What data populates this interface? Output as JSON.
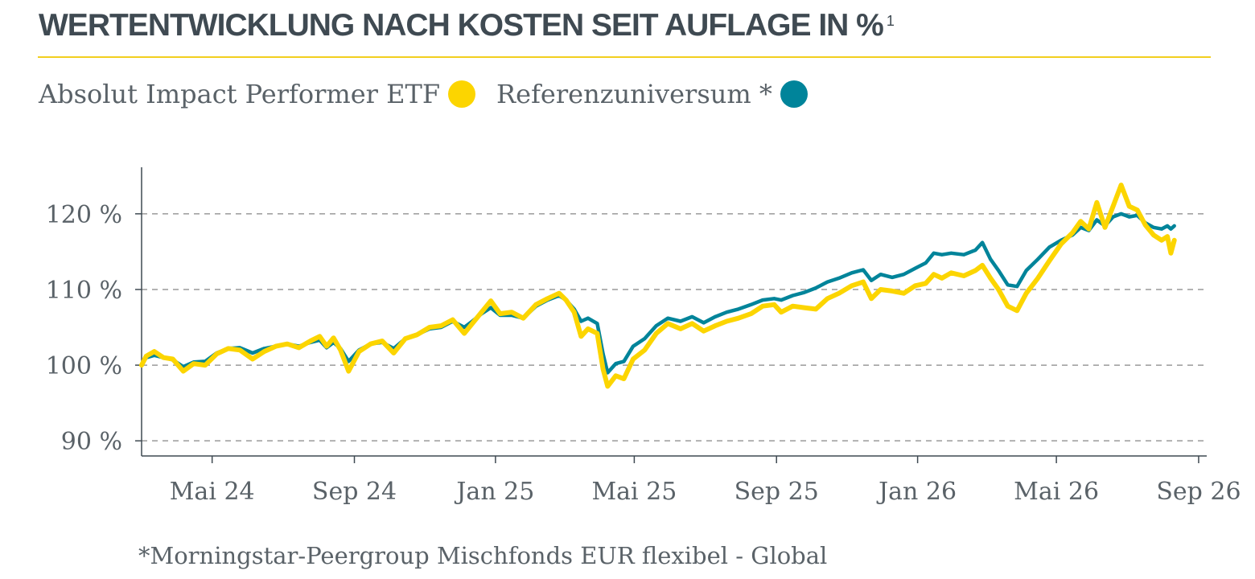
{
  "header": {
    "title": "WERTENTWICKLUNG NACH KOSTEN SEIT AUFLAGE IN %",
    "footnote_marker": "1"
  },
  "legend": {
    "items": [
      {
        "label": "Absolut Impact Performer ETF",
        "color": "#fcd500"
      },
      {
        "label": "Referenzuniversum *",
        "color": "#00849a"
      }
    ]
  },
  "footnote": "*Morningstar-Peergroup Mischfonds EUR flexibel - Global",
  "chart_data": {
    "type": "line",
    "ylim": [
      88,
      127
    ],
    "yticks": [
      90,
      100,
      110,
      120
    ],
    "ytick_labels": [
      "90 %",
      "100 %",
      "110 %",
      "120 %"
    ],
    "xlim": [
      "2024-03-01",
      "2026-09-08"
    ],
    "xticks": [
      "2024-05-01",
      "2024-09-01",
      "2025-01-01",
      "2025-05-01",
      "2025-09-01",
      "2026-01-01",
      "2026-05-01",
      "2026-09-01"
    ],
    "xtick_labels": [
      "Mai 24",
      "Sep 24",
      "Jan 25",
      "Mai 25",
      "Sep 25",
      "Jan 26",
      "Mai 26",
      "Sep 26"
    ],
    "grid": "horizontal-dashed",
    "series": [
      {
        "name": "Absolut Impact Performer ETF",
        "color": "#fcd500",
        "points": [
          [
            "2024-03-01",
            100.0
          ],
          [
            "2024-03-05",
            101.2
          ],
          [
            "2024-03-12",
            101.8
          ],
          [
            "2024-03-20",
            101.0
          ],
          [
            "2024-03-28",
            100.8
          ],
          [
            "2024-04-06",
            99.2
          ],
          [
            "2024-04-15",
            100.2
          ],
          [
            "2024-04-25",
            100.0
          ],
          [
            "2024-05-05",
            101.5
          ],
          [
            "2024-05-15",
            102.2
          ],
          [
            "2024-05-25",
            102.0
          ],
          [
            "2024-06-05",
            100.8
          ],
          [
            "2024-06-15",
            101.8
          ],
          [
            "2024-06-25",
            102.5
          ],
          [
            "2024-07-05",
            102.8
          ],
          [
            "2024-07-15",
            102.3
          ],
          [
            "2024-07-25",
            103.2
          ],
          [
            "2024-08-02",
            103.8
          ],
          [
            "2024-08-08",
            102.5
          ],
          [
            "2024-08-14",
            103.6
          ],
          [
            "2024-08-20",
            102.0
          ],
          [
            "2024-08-27",
            99.2
          ],
          [
            "2024-09-05",
            101.8
          ],
          [
            "2024-09-15",
            102.8
          ],
          [
            "2024-09-25",
            103.2
          ],
          [
            "2024-10-05",
            101.6
          ],
          [
            "2024-10-15",
            103.5
          ],
          [
            "2024-10-25",
            104.0
          ],
          [
            "2024-11-05",
            105.0
          ],
          [
            "2024-11-15",
            105.2
          ],
          [
            "2024-11-25",
            106.0
          ],
          [
            "2024-12-05",
            104.2
          ],
          [
            "2024-12-12",
            105.5
          ],
          [
            "2024-12-20",
            107.0
          ],
          [
            "2024-12-28",
            108.5
          ],
          [
            "2025-01-05",
            106.8
          ],
          [
            "2025-01-15",
            107.0
          ],
          [
            "2025-01-25",
            106.2
          ],
          [
            "2025-02-05",
            108.0
          ],
          [
            "2025-02-15",
            108.8
          ],
          [
            "2025-02-25",
            109.5
          ],
          [
            "2025-03-03",
            108.6
          ],
          [
            "2025-03-10",
            107.0
          ],
          [
            "2025-03-16",
            103.8
          ],
          [
            "2025-03-22",
            104.8
          ],
          [
            "2025-03-30",
            104.2
          ],
          [
            "2025-04-04",
            99.5
          ],
          [
            "2025-04-08",
            97.2
          ],
          [
            "2025-04-15",
            98.6
          ],
          [
            "2025-04-22",
            98.2
          ],
          [
            "2025-04-30",
            100.8
          ],
          [
            "2025-05-10",
            102.0
          ],
          [
            "2025-05-20",
            104.2
          ],
          [
            "2025-05-30",
            105.5
          ],
          [
            "2025-06-10",
            104.8
          ],
          [
            "2025-06-20",
            105.5
          ],
          [
            "2025-06-30",
            104.5
          ],
          [
            "2025-07-10",
            105.2
          ],
          [
            "2025-07-20",
            105.8
          ],
          [
            "2025-07-30",
            106.2
          ],
          [
            "2025-08-10",
            106.8
          ],
          [
            "2025-08-20",
            107.8
          ],
          [
            "2025-08-30",
            108.0
          ],
          [
            "2025-09-05",
            107.0
          ],
          [
            "2025-09-15",
            107.8
          ],
          [
            "2025-09-25",
            107.6
          ],
          [
            "2025-10-05",
            107.4
          ],
          [
            "2025-10-15",
            108.8
          ],
          [
            "2025-10-25",
            109.5
          ],
          [
            "2025-11-05",
            110.5
          ],
          [
            "2025-11-15",
            111.0
          ],
          [
            "2025-11-22",
            108.8
          ],
          [
            "2025-11-30",
            110.0
          ],
          [
            "2025-12-10",
            109.8
          ],
          [
            "2025-12-20",
            109.5
          ],
          [
            "2025-12-30",
            110.5
          ],
          [
            "2026-01-08",
            110.8
          ],
          [
            "2026-01-15",
            112.0
          ],
          [
            "2026-01-22",
            111.5
          ],
          [
            "2026-01-30",
            112.2
          ],
          [
            "2026-02-10",
            111.8
          ],
          [
            "2026-02-20",
            112.5
          ],
          [
            "2026-02-26",
            113.2
          ],
          [
            "2026-03-05",
            111.5
          ],
          [
            "2026-03-12",
            110.0
          ],
          [
            "2026-03-20",
            107.8
          ],
          [
            "2026-03-28",
            107.2
          ],
          [
            "2026-04-05",
            109.5
          ],
          [
            "2026-04-15",
            111.5
          ],
          [
            "2026-04-25",
            113.8
          ],
          [
            "2026-05-05",
            116.0
          ],
          [
            "2026-05-15",
            117.5
          ],
          [
            "2026-05-22",
            119.0
          ],
          [
            "2026-05-29",
            118.0
          ],
          [
            "2026-06-05",
            121.5
          ],
          [
            "2026-06-12",
            118.2
          ],
          [
            "2026-06-19",
            121.0
          ],
          [
            "2026-06-26",
            123.8
          ],
          [
            "2026-07-03",
            121.0
          ],
          [
            "2026-07-10",
            120.5
          ],
          [
            "2026-07-17",
            118.5
          ],
          [
            "2026-07-24",
            117.2
          ],
          [
            "2026-07-31",
            116.5
          ],
          [
            "2026-08-05",
            117.0
          ],
          [
            "2026-08-08",
            114.8
          ],
          [
            "2026-08-11",
            116.5
          ]
        ]
      },
      {
        "name": "Referenzuniversum *",
        "color": "#00849a",
        "points": [
          [
            "2024-03-01",
            100.0
          ],
          [
            "2024-03-05",
            101.0
          ],
          [
            "2024-03-12",
            101.3
          ],
          [
            "2024-03-20",
            101.0
          ],
          [
            "2024-03-28",
            100.7
          ],
          [
            "2024-04-06",
            99.8
          ],
          [
            "2024-04-15",
            100.4
          ],
          [
            "2024-04-25",
            100.5
          ],
          [
            "2024-05-05",
            101.6
          ],
          [
            "2024-05-15",
            102.2
          ],
          [
            "2024-05-25",
            102.3
          ],
          [
            "2024-06-05",
            101.6
          ],
          [
            "2024-06-15",
            102.2
          ],
          [
            "2024-06-25",
            102.5
          ],
          [
            "2024-07-05",
            102.8
          ],
          [
            "2024-07-15",
            102.5
          ],
          [
            "2024-07-25",
            103.0
          ],
          [
            "2024-08-02",
            103.3
          ],
          [
            "2024-08-08",
            102.3
          ],
          [
            "2024-08-14",
            103.0
          ],
          [
            "2024-08-20",
            102.2
          ],
          [
            "2024-08-27",
            100.5
          ],
          [
            "2024-09-05",
            102.0
          ],
          [
            "2024-09-15",
            102.8
          ],
          [
            "2024-09-25",
            103.0
          ],
          [
            "2024-10-05",
            102.2
          ],
          [
            "2024-10-15",
            103.5
          ],
          [
            "2024-10-25",
            104.0
          ],
          [
            "2024-11-05",
            104.8
          ],
          [
            "2024-11-15",
            105.0
          ],
          [
            "2024-11-25",
            105.8
          ],
          [
            "2024-12-05",
            105.0
          ],
          [
            "2024-12-12",
            105.8
          ],
          [
            "2024-12-20",
            106.8
          ],
          [
            "2024-12-28",
            107.6
          ],
          [
            "2025-01-05",
            106.6
          ],
          [
            "2025-01-15",
            106.6
          ],
          [
            "2025-01-25",
            106.2
          ],
          [
            "2025-02-05",
            107.8
          ],
          [
            "2025-02-15",
            108.6
          ],
          [
            "2025-02-25",
            109.2
          ],
          [
            "2025-03-03",
            108.6
          ],
          [
            "2025-03-10",
            107.4
          ],
          [
            "2025-03-16",
            105.8
          ],
          [
            "2025-03-22",
            106.2
          ],
          [
            "2025-03-30",
            105.5
          ],
          [
            "2025-04-04",
            101.5
          ],
          [
            "2025-04-08",
            99.0
          ],
          [
            "2025-04-15",
            100.2
          ],
          [
            "2025-04-22",
            100.5
          ],
          [
            "2025-04-30",
            102.5
          ],
          [
            "2025-05-10",
            103.5
          ],
          [
            "2025-05-20",
            105.2
          ],
          [
            "2025-05-30",
            106.2
          ],
          [
            "2025-06-10",
            105.8
          ],
          [
            "2025-06-20",
            106.4
          ],
          [
            "2025-06-30",
            105.6
          ],
          [
            "2025-07-10",
            106.4
          ],
          [
            "2025-07-20",
            107.0
          ],
          [
            "2025-07-30",
            107.4
          ],
          [
            "2025-08-10",
            108.0
          ],
          [
            "2025-08-20",
            108.6
          ],
          [
            "2025-08-30",
            108.8
          ],
          [
            "2025-09-05",
            108.6
          ],
          [
            "2025-09-15",
            109.2
          ],
          [
            "2025-09-25",
            109.6
          ],
          [
            "2025-10-05",
            110.2
          ],
          [
            "2025-10-15",
            111.0
          ],
          [
            "2025-10-25",
            111.5
          ],
          [
            "2025-11-05",
            112.2
          ],
          [
            "2025-11-15",
            112.6
          ],
          [
            "2025-11-22",
            111.2
          ],
          [
            "2025-11-30",
            112.0
          ],
          [
            "2025-12-10",
            111.6
          ],
          [
            "2025-12-20",
            112.0
          ],
          [
            "2025-12-30",
            112.8
          ],
          [
            "2026-01-08",
            113.5
          ],
          [
            "2026-01-15",
            114.8
          ],
          [
            "2026-01-22",
            114.6
          ],
          [
            "2026-01-30",
            114.8
          ],
          [
            "2026-02-10",
            114.6
          ],
          [
            "2026-02-20",
            115.2
          ],
          [
            "2026-02-26",
            116.2
          ],
          [
            "2026-03-05",
            114.0
          ],
          [
            "2026-03-12",
            112.5
          ],
          [
            "2026-03-20",
            110.6
          ],
          [
            "2026-03-28",
            110.4
          ],
          [
            "2026-04-05",
            112.5
          ],
          [
            "2026-04-15",
            114.0
          ],
          [
            "2026-04-25",
            115.6
          ],
          [
            "2026-05-05",
            116.5
          ],
          [
            "2026-05-15",
            117.2
          ],
          [
            "2026-05-22",
            118.2
          ],
          [
            "2026-05-29",
            117.8
          ],
          [
            "2026-06-05",
            119.2
          ],
          [
            "2026-06-12",
            118.4
          ],
          [
            "2026-06-19",
            119.6
          ],
          [
            "2026-06-26",
            120.0
          ],
          [
            "2026-07-03",
            119.6
          ],
          [
            "2026-07-10",
            119.8
          ],
          [
            "2026-07-17",
            118.8
          ],
          [
            "2026-07-24",
            118.2
          ],
          [
            "2026-07-31",
            118.0
          ],
          [
            "2026-08-05",
            118.4
          ],
          [
            "2026-08-08",
            118.0
          ],
          [
            "2026-08-11",
            118.4
          ]
        ]
      }
    ]
  }
}
